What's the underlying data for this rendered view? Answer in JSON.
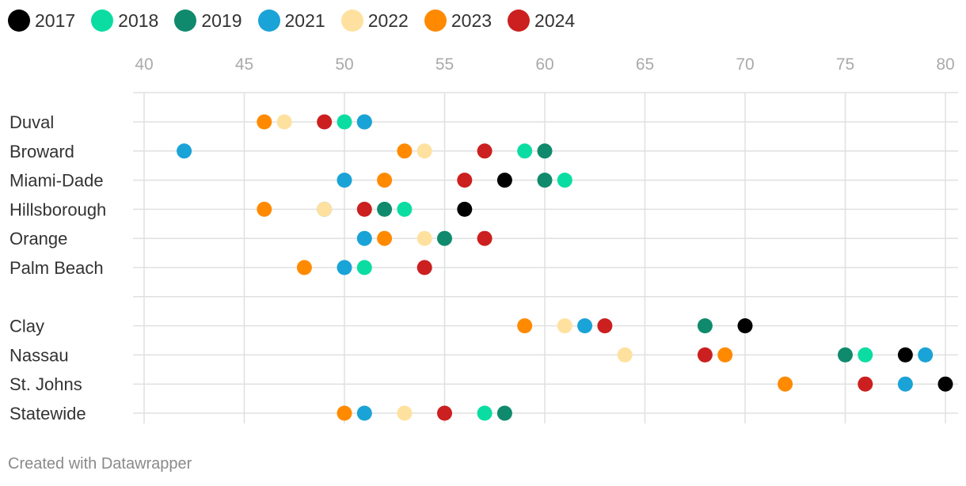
{
  "chart_data": {
    "type": "scatter",
    "subtype": "dot-plot",
    "legend_position": "top-left",
    "grid": true,
    "x_ticks": [
      40,
      45,
      50,
      55,
      60,
      65,
      70,
      75,
      80
    ],
    "xlim": [
      40,
      80
    ],
    "categories": [
      "Duval",
      "Broward",
      "Miami-Dade",
      "Hillsborough",
      "Orange",
      "Palm Beach",
      "",
      "Clay",
      "Nassau",
      "St. Johns",
      "Statewide"
    ],
    "series": [
      {
        "name": "2017",
        "color": "#000000",
        "values": [
          null,
          null,
          58,
          56,
          null,
          null,
          null,
          70,
          78,
          80,
          null
        ]
      },
      {
        "name": "2018",
        "color": "#0bdda2",
        "values": [
          50,
          59,
          61,
          53,
          null,
          51,
          null,
          null,
          76,
          null,
          57
        ]
      },
      {
        "name": "2019",
        "color": "#0f8a6d",
        "values": [
          51,
          60,
          60,
          52,
          55,
          null,
          null,
          68,
          75,
          null,
          58
        ]
      },
      {
        "name": "2021",
        "color": "#1aa3d6",
        "values": [
          51,
          42,
          50,
          49,
          51,
          50,
          null,
          62,
          79,
          78,
          51
        ]
      },
      {
        "name": "2022",
        "color": "#ffe19f",
        "values": [
          47,
          54,
          null,
          49,
          54,
          null,
          null,
          61,
          64,
          null,
          53
        ]
      },
      {
        "name": "2023",
        "color": "#ff8a00",
        "values": [
          46,
          53,
          52,
          46,
          52,
          48,
          null,
          59,
          69,
          72,
          50
        ]
      },
      {
        "name": "2024",
        "color": "#cc1f1f",
        "values": [
          49,
          57,
          56,
          51,
          57,
          54,
          null,
          63,
          68,
          76,
          55
        ]
      }
    ]
  },
  "footer": {
    "credit": "Created with Datawrapper"
  }
}
